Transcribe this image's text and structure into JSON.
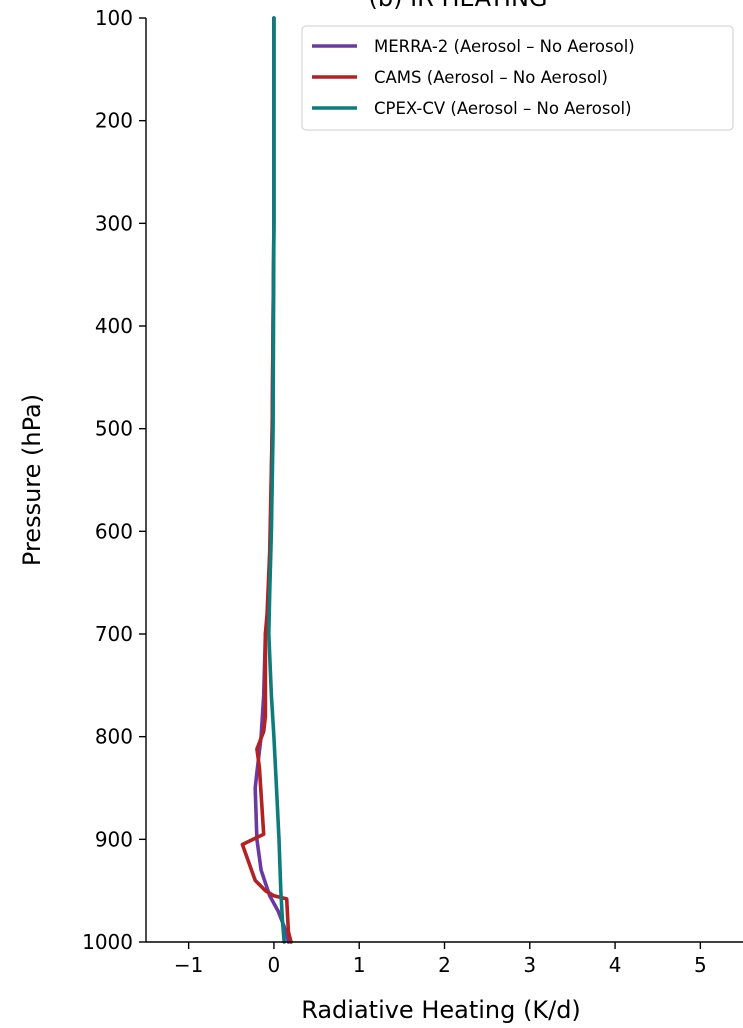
{
  "chart_data": {
    "type": "line",
    "title": "(b) IR HEATING",
    "xlabel": "Radiative Heating (K/d)",
    "ylabel": "Pressure (hPa)",
    "xlim": [
      -1.5,
      5.5
    ],
    "ylim": [
      1000,
      100
    ],
    "y_inverted": true,
    "xticks": [
      -1,
      0,
      1,
      2,
      3,
      4,
      5
    ],
    "xtick_labels": [
      "−1",
      "0",
      "1",
      "2",
      "3",
      "4",
      "5"
    ],
    "yticks": [
      100,
      200,
      300,
      400,
      500,
      600,
      700,
      800,
      900,
      1000
    ],
    "ytick_labels": [
      "100",
      "200",
      "300",
      "400",
      "500",
      "600",
      "700",
      "800",
      "900",
      "1000"
    ],
    "grid": false,
    "legend_position": "top-right",
    "series": [
      {
        "name": "MERRA-2 (Aerosol – No Aerosol)",
        "color": "#6a3aa0",
        "x": [
          0.0,
          0.0,
          -0.02,
          -0.04,
          -0.07,
          -0.1,
          -0.12,
          -0.15,
          -0.2,
          -0.22,
          -0.2,
          -0.15,
          -0.05,
          0.05,
          0.12,
          0.17
        ],
        "y": [
          100,
          300,
          500,
          600,
          680,
          700,
          760,
          800,
          835,
          850,
          900,
          930,
          955,
          970,
          985,
          1000
        ]
      },
      {
        "name": "CAMS (Aerosol – No Aerosol)",
        "color": "#b22222",
        "x": [
          0.0,
          0.0,
          -0.02,
          -0.05,
          -0.08,
          -0.1,
          -0.1,
          -0.12,
          -0.2,
          -0.17,
          -0.12,
          -0.37,
          -0.22,
          -0.1,
          0.0,
          0.15,
          0.17,
          0.2
        ],
        "y": [
          100,
          300,
          500,
          620,
          680,
          700,
          780,
          795,
          812,
          830,
          895,
          905,
          940,
          950,
          955,
          958,
          990,
          1000
        ]
      },
      {
        "name": "CPEX-CV (Aerosol – No Aerosol)",
        "color": "#0e7c7b",
        "x": [
          0.0,
          0.0,
          -0.01,
          -0.03,
          -0.05,
          -0.06,
          -0.03,
          0.0,
          0.03,
          0.06,
          0.08,
          0.1,
          0.12
        ],
        "y": [
          100,
          300,
          500,
          600,
          660,
          700,
          760,
          800,
          850,
          900,
          950,
          980,
          1000
        ]
      }
    ]
  }
}
